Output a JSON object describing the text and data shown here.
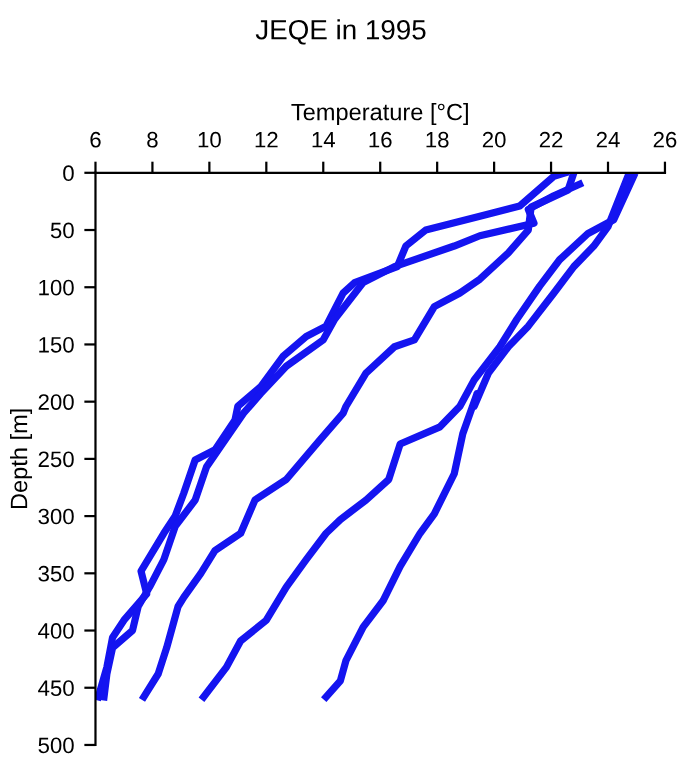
{
  "chart_data": {
    "type": "line",
    "title": "JEQE in 1995",
    "xlabel": "Temperature [°C]",
    "ylabel": "Depth [m]",
    "xlim": [
      6,
      26
    ],
    "xticks": [
      6,
      8,
      10,
      12,
      14,
      16,
      18,
      20,
      22,
      24,
      26
    ],
    "ylim": [
      500,
      0
    ],
    "yticks": [
      0,
      50,
      100,
      150,
      200,
      250,
      300,
      350,
      400,
      450,
      500
    ],
    "grid": false,
    "marker": "none",
    "line_style": "solid",
    "series": [
      {
        "color": "#1414f0",
        "x": [
          22.5,
          22.1,
          20.9,
          19.5,
          17.6,
          16.9,
          16.6,
          15.1,
          14.7,
          14.1,
          13.4,
          12.6,
          11.8,
          11.0,
          10.9,
          10.2,
          9.5,
          9.1,
          8.8,
          8.4,
          7.6,
          7.8,
          7.0,
          6.6,
          6.4,
          6.1
        ],
        "values": [
          0,
          3,
          29,
          38,
          50,
          64,
          82,
          96,
          105,
          134,
          143,
          160,
          187,
          204,
          216,
          242,
          251,
          280,
          300,
          315,
          348,
          368,
          391,
          406,
          432,
          458
        ]
      },
      {
        "color": "#1414f0",
        "x": [
          23.0,
          22.1,
          21.2,
          21.4,
          19.5,
          18.6,
          16.5,
          15.4,
          14.4,
          14.0,
          12.7,
          11.8,
          11.2,
          10.4,
          9.9,
          9.5,
          8.8,
          8.4,
          7.9,
          7.5,
          7.3,
          6.6,
          6.4,
          6.3
        ],
        "values": [
          10,
          20,
          32,
          44,
          55,
          64,
          82,
          96,
          128,
          146,
          169,
          193,
          210,
          239,
          257,
          286,
          309,
          338,
          362,
          379,
          400,
          415,
          438,
          458
        ]
      },
      {
        "color": "#1414f0",
        "x": [
          22.8,
          22.6,
          21.3,
          21.2,
          20.5,
          19.5,
          18.8,
          17.9,
          17.2,
          16.5,
          15.5,
          14.8,
          14.7,
          13.9,
          12.7,
          11.6,
          11.1,
          10.2,
          9.7,
          9.1,
          8.9,
          8.5,
          8.2,
          7.7
        ],
        "values": [
          0,
          15,
          30,
          50,
          70,
          93,
          105,
          117,
          146,
          152,
          175,
          204,
          210,
          233,
          268,
          286,
          315,
          330,
          350,
          371,
          379,
          415,
          438,
          458
        ]
      },
      {
        "color": "#1414f0",
        "x": [
          24.9,
          24.2,
          23.3,
          22.3,
          21.6,
          20.8,
          20.2,
          19.3,
          18.8,
          18.1,
          16.7,
          16.3,
          15.5,
          14.6,
          14.1,
          13.4,
          12.7,
          12.0,
          11.1,
          10.6,
          9.8
        ],
        "values": [
          3,
          41,
          53,
          76,
          99,
          128,
          152,
          181,
          204,
          222,
          237,
          268,
          286,
          303,
          315,
          338,
          362,
          391,
          409,
          432,
          458
        ]
      },
      {
        "color": "#1414f0",
        "x": [
          24.7,
          24.0,
          23.5,
          22.8,
          22.1,
          21.2,
          20.5,
          19.8,
          19.3,
          19.4,
          18.9,
          18.6,
          17.9,
          17.4,
          16.7,
          16.1,
          15.4,
          14.8,
          14.6,
          14.1
        ],
        "values": [
          3,
          47,
          64,
          82,
          105,
          134,
          152,
          175,
          204,
          193,
          228,
          263,
          298,
          315,
          344,
          374,
          397,
          426,
          444,
          458
        ]
      }
    ]
  }
}
